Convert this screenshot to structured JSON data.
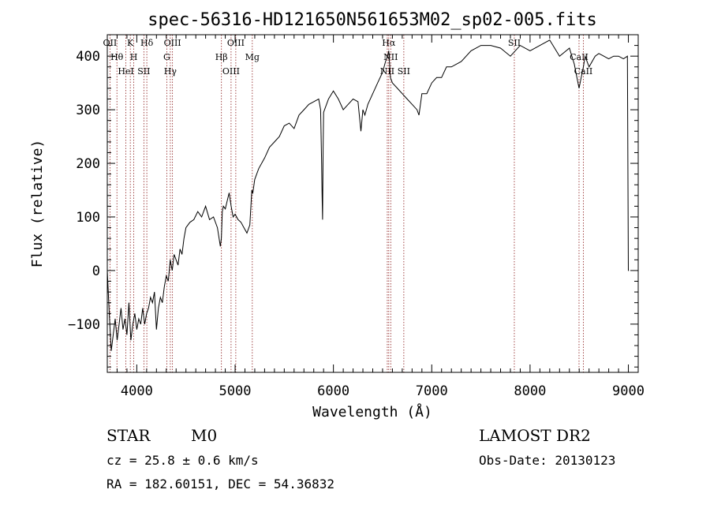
{
  "chart_data": {
    "type": "line",
    "title": "spec-56316-HD121650N561653M02_sp02-005.fits",
    "xlabel": "Wavelength (Å)",
    "ylabel": "Flux (relative)",
    "xlim": [
      3700,
      9100
    ],
    "ylim": [
      -190,
      440
    ],
    "xticks": [
      4000,
      5000,
      6000,
      7000,
      8000,
      9000
    ],
    "yticks": [
      -100,
      0,
      100,
      200,
      300,
      400
    ],
    "line_color": "#000000",
    "marker_color": "#8b1a1a",
    "grid": false,
    "series": [
      {
        "x": [
          3700,
          3720,
          3740,
          3760,
          3780,
          3800,
          3820,
          3840,
          3860,
          3880,
          3900,
          3920,
          3940,
          3960,
          3980,
          4000,
          4020,
          4040,
          4060,
          4080,
          4100,
          4120,
          4140,
          4160,
          4180,
          4200,
          4220,
          4240,
          4260,
          4280,
          4300,
          4320,
          4340,
          4360,
          4380,
          4400,
          4420,
          4440,
          4460,
          4480,
          4500,
          4540,
          4580,
          4620,
          4660,
          4700,
          4740,
          4780,
          4820,
          4850,
          4860,
          4870,
          4880,
          4900,
          4920,
          4940,
          4960,
          4980,
          5000,
          5030,
          5060,
          5090,
          5120,
          5150,
          5170,
          5180,
          5200,
          5240,
          5300,
          5350,
          5400,
          5450,
          5500,
          5550,
          5600,
          5650,
          5700,
          5750,
          5800,
          5850,
          5870,
          5880,
          5885,
          5890,
          5895,
          5900,
          5910,
          5950,
          6000,
          6050,
          6100,
          6150,
          6200,
          6250,
          6280,
          6300,
          6320,
          6350,
          6400,
          6450,
          6500,
          6530,
          6550,
          6563,
          6580,
          6600,
          6650,
          6700,
          6750,
          6800,
          6850,
          6870,
          6900,
          6950,
          7000,
          7050,
          7100,
          7150,
          7200,
          7300,
          7400,
          7500,
          7600,
          7700,
          7800,
          7900,
          8000,
          8100,
          8200,
          8300,
          8400,
          8450,
          8498,
          8520,
          8542,
          8560,
          8600,
          8662,
          8700,
          8750,
          8800,
          8850,
          8900,
          8950,
          8990,
          9000,
          9005
        ],
        "y": [
          0,
          -80,
          -150,
          -120,
          -90,
          -130,
          -100,
          -70,
          -110,
          -90,
          -120,
          -60,
          -130,
          -100,
          -80,
          -110,
          -90,
          -100,
          -70,
          -100,
          -80,
          -70,
          -50,
          -60,
          -40,
          -110,
          -70,
          -50,
          -60,
          -30,
          -10,
          -20,
          20,
          0,
          30,
          20,
          10,
          40,
          30,
          60,
          80,
          90,
          95,
          110,
          100,
          120,
          95,
          100,
          80,
          45,
          60,
          110,
          120,
          115,
          130,
          145,
          120,
          100,
          105,
          95,
          90,
          80,
          70,
          85,
          150,
          145,
          170,
          190,
          210,
          230,
          240,
          250,
          270,
          275,
          265,
          290,
          300,
          310,
          315,
          320,
          300,
          200,
          140,
          95,
          230,
          295,
          300,
          320,
          335,
          320,
          300,
          310,
          320,
          315,
          260,
          300,
          290,
          310,
          330,
          350,
          370,
          390,
          400,
          410,
          360,
          350,
          340,
          330,
          320,
          310,
          300,
          290,
          330,
          330,
          350,
          360,
          360,
          380,
          380,
          390,
          410,
          420,
          420,
          415,
          400,
          420,
          410,
          420,
          430,
          400,
          415,
          385,
          340,
          360,
          380,
          400,
          380,
          400,
          405,
          400,
          395,
          400,
          400,
          395,
          400,
          0,
          0
        ]
      }
    ],
    "lines": [
      {
        "label": "OII",
        "x": 3727
      },
      {
        "label": "Hθ",
        "x": 3798
      },
      {
        "label": "HeI",
        "x": 3889
      },
      {
        "label": "K",
        "x": 3934
      },
      {
        "label": "H",
        "x": 3969
      },
      {
        "label": "SII",
        "x": 4072
      },
      {
        "label": "Hδ",
        "x": 4102
      },
      {
        "label": "G",
        "x": 4305
      },
      {
        "label": "Hγ",
        "x": 4341
      },
      {
        "label": "OIII",
        "x": 4363
      },
      {
        "label": "Hβ",
        "x": 4861
      },
      {
        "label": "OIII",
        "x": 4959
      },
      {
        "label": "OIII",
        "x": 5007
      },
      {
        "label": "Mg",
        "x": 5175
      },
      {
        "label": "NII",
        "x": 6548
      },
      {
        "label": "Hα",
        "x": 6563
      },
      {
        "label": "NII",
        "x": 6583
      },
      {
        "label": "SII",
        "x": 6716
      },
      {
        "label": "SII",
        "x": 7840
      },
      {
        "label": "CaII",
        "x": 8498
      },
      {
        "label": "CaII",
        "x": 8542
      }
    ]
  },
  "info": {
    "class_label": "STAR",
    "subclass_label": "M0",
    "survey": "LAMOST DR2",
    "cz": "cz = 25.8 ± 0.6 km/s",
    "obs_date": "Obs-Date: 20130123",
    "coords": "RA = 182.60151, DEC =  54.36832"
  }
}
